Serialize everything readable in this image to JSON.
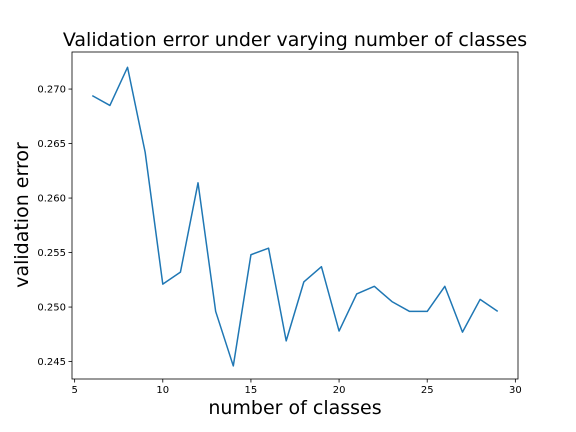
{
  "chart_data": {
    "type": "line",
    "title": "Validation error under varying number of classes",
    "xlabel": "number of classes",
    "ylabel": "validation error",
    "xlim": [
      4.85,
      30.15
    ],
    "ylim": [
      0.2434,
      0.2734
    ],
    "xticks": [
      5,
      10,
      15,
      20,
      25,
      30
    ],
    "yticks": [
      0.245,
      0.25,
      0.255,
      0.26,
      0.265,
      0.27
    ],
    "ytick_labels": [
      "0.245",
      "0.250",
      "0.255",
      "0.260",
      "0.265",
      "0.270"
    ],
    "grid": false,
    "series": [
      {
        "color": "#1f77b4",
        "x": [
          6,
          7,
          8,
          9,
          10,
          11,
          12,
          13,
          14,
          15,
          16,
          17,
          18,
          19,
          20,
          21,
          22,
          23,
          24,
          25,
          26,
          27,
          28,
          29
        ],
        "y": [
          0.2694,
          0.2685,
          0.272,
          0.2642,
          0.2521,
          0.2532,
          0.2614,
          0.2496,
          0.2446,
          0.2548,
          0.2554,
          0.2469,
          0.2523,
          0.2537,
          0.2478,
          0.2512,
          0.2519,
          0.2505,
          0.2496,
          0.2496,
          0.2519,
          0.2477,
          0.2507,
          0.2496
        ]
      }
    ]
  }
}
